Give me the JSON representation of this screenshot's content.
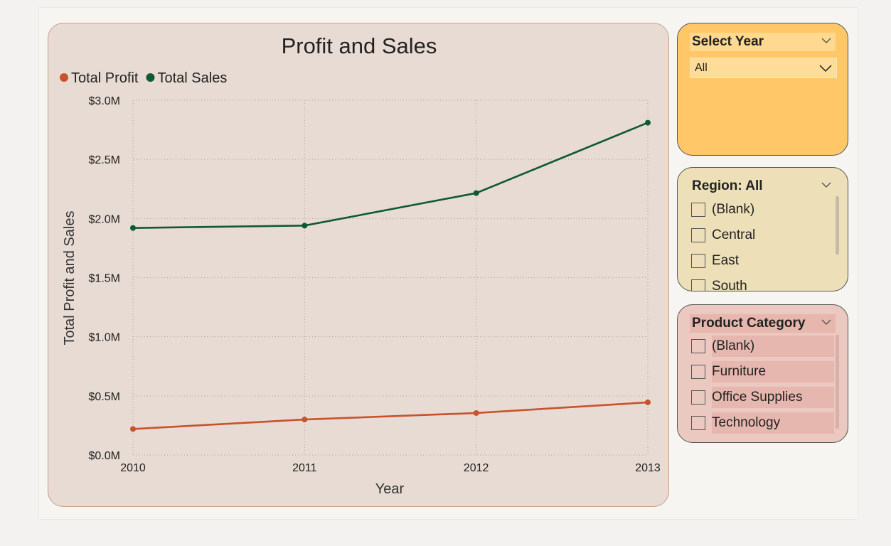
{
  "chart_data": {
    "type": "line",
    "title": "Profit and Sales",
    "xlabel": "Year",
    "ylabel": "Total Profit and Sales",
    "x": [
      "2010",
      "2011",
      "2012",
      "2013"
    ],
    "ylim": [
      0,
      3000000
    ],
    "yticks": [
      "$0.0M",
      "$0.5M",
      "$1.0M",
      "$1.5M",
      "$2.0M",
      "$2.5M",
      "$3.0M"
    ],
    "grid": true,
    "legend_position": "top-left",
    "series": [
      {
        "name": "Total Profit",
        "color": "#c8522b",
        "values": [
          220000,
          300000,
          355000,
          445000
        ]
      },
      {
        "name": "Total Sales",
        "color": "#0f5a34",
        "values": [
          1920000,
          1940000,
          2215000,
          2810000
        ]
      }
    ]
  },
  "slicers": {
    "year": {
      "title": "Select Year",
      "selected": "All"
    },
    "region": {
      "title": "Region: All",
      "items": [
        "(Blank)",
        "Central",
        "East",
        "South"
      ]
    },
    "category": {
      "title": "Product Category",
      "items": [
        "(Blank)",
        "Furniture",
        "Office Supplies",
        "Technology"
      ]
    }
  }
}
